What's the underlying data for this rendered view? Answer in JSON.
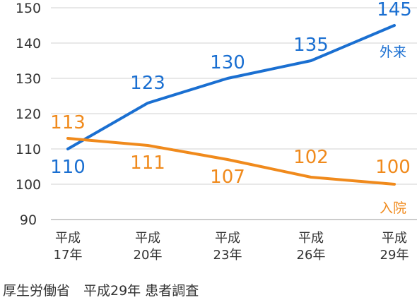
{
  "chart_data": {
    "type": "line",
    "categories": [
      [
        "平成",
        "17年"
      ],
      [
        "平成",
        "20年"
      ],
      [
        "平成",
        "23年"
      ],
      [
        "平成",
        "26年"
      ],
      [
        "平成",
        "29年"
      ]
    ],
    "series": [
      {
        "name": "外来",
        "values": [
          110,
          123,
          130,
          135,
          145
        ],
        "color": "#1a6fd1"
      },
      {
        "name": "入院",
        "values": [
          113,
          111,
          107,
          102,
          100
        ],
        "color": "#f08a1c"
      }
    ],
    "ylim": [
      90,
      150
    ],
    "yticks": [
      90,
      100,
      110,
      120,
      130,
      140,
      150
    ],
    "grid": true,
    "title": "",
    "xlabel": "",
    "ylabel": ""
  },
  "source": "厚生労働省　平成29年 患者調査"
}
